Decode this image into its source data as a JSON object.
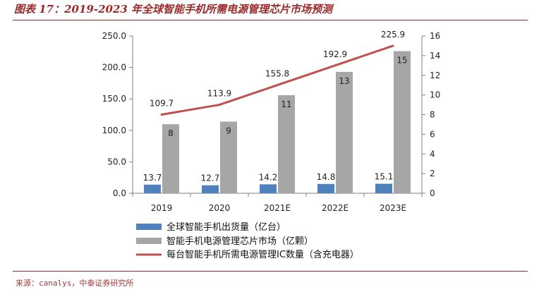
{
  "figure": {
    "title": "图表 17：2019-2023 年全球智能手机所需电源管理芯片市场预测",
    "source": "来源：canalys，中泰证券研究所"
  },
  "colors": {
    "shipments": "#4f81bd",
    "market": "#a6a6a6",
    "ic_count": "#c0504d",
    "accent": "#9b2a2a"
  },
  "chart_data": {
    "type": "bar",
    "categories": [
      "2019",
      "2020",
      "2021E",
      "2022E",
      "2023E"
    ],
    "series": [
      {
        "name": "全球智能手机出货量（亿台）",
        "type": "bar",
        "axis": "left",
        "values": [
          13.7,
          12.7,
          14.2,
          14.8,
          15.1
        ],
        "labels": [
          "13.7",
          "12.7",
          "14.2",
          "14.8",
          "15.1"
        ]
      },
      {
        "name": "智能手机电源管理芯片市场（亿颗）",
        "type": "bar",
        "axis": "left",
        "values": [
          109.7,
          113.9,
          155.8,
          192.9,
          225.9
        ],
        "labels": [
          "109.7",
          "113.9",
          "155.8",
          "192.9",
          "225.9"
        ]
      },
      {
        "name": "每台智能手机所需电源管理IC数量（含充电器）",
        "type": "line",
        "axis": "right",
        "values": [
          8,
          9,
          11,
          13,
          15
        ],
        "labels": [
          "8",
          "9",
          "11",
          "13",
          "15"
        ]
      }
    ],
    "y_left": {
      "min": 0,
      "max": 250,
      "ticks": [
        "0.0",
        "50.0",
        "100.0",
        "150.0",
        "200.0",
        "250.0"
      ]
    },
    "y_right": {
      "min": 0,
      "max": 16,
      "ticks": [
        "0",
        "2",
        "4",
        "6",
        "8",
        "10",
        "12",
        "14",
        "16"
      ]
    },
    "grid": false,
    "legend_position": "bottom"
  }
}
